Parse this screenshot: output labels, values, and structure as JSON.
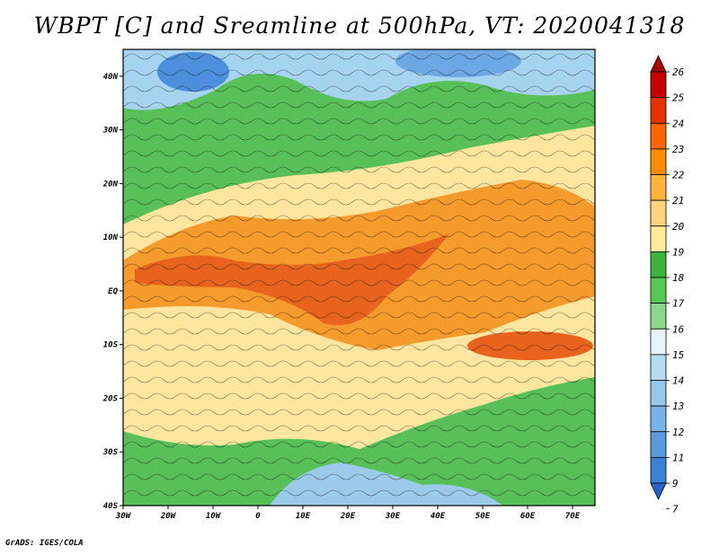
{
  "title": "WBPT [C] and Sreamline at 500hPa, VT: 2020041318",
  "credit": "GrADS: IGES/COLA",
  "map": {
    "lon_ticks": [
      "30W",
      "20W",
      "10W",
      "0",
      "10E",
      "20E",
      "30E",
      "40E",
      "50E",
      "60E",
      "70E"
    ],
    "lat_ticks": [
      "40N",
      "30N",
      "20N",
      "10N",
      "EQ",
      "10S",
      "20S",
      "30S",
      "40S"
    ]
  },
  "colorbar": {
    "labels": [
      "26",
      "25",
      "24",
      "23",
      "22",
      "21",
      "20",
      "19",
      "18",
      "17",
      "16",
      "15",
      "14",
      "13",
      "12",
      "11",
      "9",
      "7"
    ],
    "colors": [
      "#a50000",
      "#c80000",
      "#e63200",
      "#ff6600",
      "#ff8c00",
      "#ffb43c",
      "#ffd27d",
      "#ffeb9b",
      "#3cb43c",
      "#55c855",
      "#8cd78c",
      "#e6f5f5",
      "#b4dcf0",
      "#96c8eb",
      "#78b4e6",
      "#5a9bdc",
      "#3c82d2",
      "#2864c8"
    ]
  }
}
